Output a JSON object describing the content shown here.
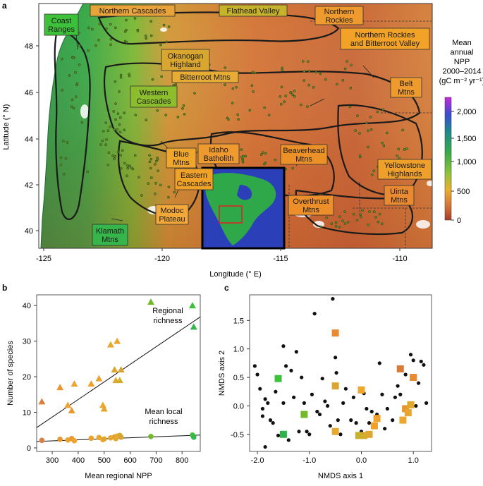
{
  "panel_labels": {
    "a": "a",
    "b": "b",
    "c": "c"
  },
  "panel_a": {
    "ylabel": "Latitude (° N)",
    "xlabel": "Longitude (° E)",
    "xticks": [
      "-125",
      "-120",
      "-115",
      "-110"
    ],
    "yticks": [
      "40",
      "42",
      "44",
      "46",
      "48"
    ],
    "colorbar": {
      "title_lines": [
        "Mean",
        "annual",
        "NPP",
        "2000–2014",
        "(gC m⁻² yr⁻¹)"
      ],
      "ticks": [
        "0",
        "500",
        "1,000",
        "1,500",
        "2,000"
      ]
    },
    "regions": [
      {
        "lines": [
          "Coast",
          "Ranges"
        ],
        "color": "#3ec13a"
      },
      {
        "lines": [
          "Northern Cascades"
        ],
        "color": "#e8a33a"
      },
      {
        "lines": [
          "Flathead Valley"
        ],
        "color": "#c7b32b"
      },
      {
        "lines": [
          "Northern",
          "Rockies"
        ],
        "color": "#ef9a2e"
      },
      {
        "lines": [
          "Northern Rockies",
          "and Bitterroot Valley"
        ],
        "color": "#f2a227"
      },
      {
        "lines": [
          "Okanogan",
          "Highland"
        ],
        "color": "#d9a62f"
      },
      {
        "lines": [
          "Bitterroot Mtns"
        ],
        "color": "#e6ac34"
      },
      {
        "lines": [
          "Belt",
          "Mtns"
        ],
        "color": "#ee9a2c"
      },
      {
        "lines": [
          "Western",
          "Cascades"
        ],
        "color": "#8cbd2c"
      },
      {
        "lines": [
          "Blue",
          "Mtns"
        ],
        "color": "#f0a52c"
      },
      {
        "lines": [
          "Idaho",
          "Batholith"
        ],
        "color": "#ef9a2e"
      },
      {
        "lines": [
          "Beaverhead",
          "Mtns"
        ],
        "color": "#ec9128"
      },
      {
        "lines": [
          "Yellowstone",
          "Highlands"
        ],
        "color": "#eea02b"
      },
      {
        "lines": [
          "Eastern",
          "Cascades"
        ],
        "color": "#f0a127"
      },
      {
        "lines": [
          "Overthrust",
          "Mtns"
        ],
        "color": "#ec8e2a"
      },
      {
        "lines": [
          "Uinta",
          "Mtns"
        ],
        "color": "#ea8a30"
      },
      {
        "lines": [
          "Modoc",
          "Plateau"
        ],
        "color": "#f3a93a"
      },
      {
        "lines": [
          "Klamath",
          "Mtns"
        ],
        "color": "#35b54a"
      }
    ]
  },
  "chart_data": [
    {
      "type": "scatter",
      "panel": "b",
      "xlabel": "Mean regional NPP",
      "ylabel": "Number of species",
      "xlim": [
        240,
        870
      ],
      "ylim": [
        -1,
        43
      ],
      "xticks": [
        300,
        400,
        500,
        600,
        700,
        800
      ],
      "yticks": [
        0,
        10,
        20,
        30,
        40
      ],
      "annotations": [
        {
          "lines": [
            "Regional",
            "richness"
          ]
        },
        {
          "lines": [
            "Mean local",
            "richness"
          ]
        }
      ],
      "series": [
        {
          "marker": "triangle",
          "points": [
            {
              "x": 260,
              "y": 13,
              "color": "#d98040"
            },
            {
              "x": 330,
              "y": 17,
              "color": "#e8962f"
            },
            {
              "x": 360,
              "y": 12,
              "color": "#eea32e"
            },
            {
              "x": 375,
              "y": 10.5,
              "color": "#e89a30"
            },
            {
              "x": 385,
              "y": 18,
              "color": "#eea32e"
            },
            {
              "x": 450,
              "y": 18,
              "color": "#f0a02a"
            },
            {
              "x": 480,
              "y": 19.5,
              "color": "#e8a52f"
            },
            {
              "x": 495,
              "y": 12,
              "color": "#f0a72d"
            },
            {
              "x": 500,
              "y": 11,
              "color": "#e0a630"
            },
            {
              "x": 525,
              "y": 29,
              "color": "#e8a830"
            },
            {
              "x": 540,
              "y": 22,
              "color": "#dca52d"
            },
            {
              "x": 545,
              "y": 19,
              "color": "#e0a830"
            },
            {
              "x": 550,
              "y": 30,
              "color": "#eea72c"
            },
            {
              "x": 560,
              "y": 19,
              "color": "#cfae2e"
            },
            {
              "x": 565,
              "y": 22,
              "color": "#d6a530"
            },
            {
              "x": 680,
              "y": 41,
              "color": "#74b82c"
            },
            {
              "x": 840,
              "y": 40,
              "color": "#3ec13a"
            },
            {
              "x": 845,
              "y": 34,
              "color": "#34b64a"
            }
          ],
          "fit": {
            "x": [
              240,
              870
            ],
            "y": [
              5.7,
              36.8
            ]
          }
        },
        {
          "marker": "circle",
          "points": [
            {
              "x": 260,
              "y": 2.1,
              "color": "#d98040"
            },
            {
              "x": 330,
              "y": 2.4,
              "color": "#e8962f"
            },
            {
              "x": 360,
              "y": 2.2,
              "color": "#eea32e"
            },
            {
              "x": 375,
              "y": 2.6,
              "color": "#e89a30"
            },
            {
              "x": 385,
              "y": 2.0,
              "color": "#eea32e"
            },
            {
              "x": 450,
              "y": 2.7,
              "color": "#f0a02a"
            },
            {
              "x": 480,
              "y": 2.9,
              "color": "#e8a52f"
            },
            {
              "x": 495,
              "y": 2.3,
              "color": "#f0a72d"
            },
            {
              "x": 500,
              "y": 2.5,
              "color": "#e0a630"
            },
            {
              "x": 525,
              "y": 2.8,
              "color": "#e8a830"
            },
            {
              "x": 540,
              "y": 3.1,
              "color": "#dca52d"
            },
            {
              "x": 545,
              "y": 2.6,
              "color": "#e0a830"
            },
            {
              "x": 550,
              "y": 3.3,
              "color": "#eea72c"
            },
            {
              "x": 560,
              "y": 3.5,
              "color": "#cfae2e"
            },
            {
              "x": 565,
              "y": 3.0,
              "color": "#d6a530"
            },
            {
              "x": 680,
              "y": 3.2,
              "color": "#74b82c"
            },
            {
              "x": 840,
              "y": 3.6,
              "color": "#3ec13a"
            },
            {
              "x": 845,
              "y": 3.0,
              "color": "#34b64a"
            }
          ],
          "fit": {
            "x": [
              240,
              870
            ],
            "y": [
              1.8,
              3.6
            ]
          }
        }
      ]
    },
    {
      "type": "scatter",
      "panel": "c",
      "xlabel": "NMDS axis 1",
      "ylabel": "NMDS axis 2",
      "xlim": [
        -2.15,
        1.35
      ],
      "ylim": [
        -0.8,
        1.95
      ],
      "xticks": [
        -2.0,
        -1.0,
        0.0,
        1.0
      ],
      "yticks": [
        -0.5,
        0.0,
        0.5,
        1.0,
        1.5
      ],
      "series": [
        {
          "marker": "circle",
          "color": "#111111",
          "points": [
            [
              -2.05,
              0.7
            ],
            [
              -2.0,
              0.55
            ],
            [
              -1.95,
              0.3
            ],
            [
              -1.9,
              -0.05
            ],
            [
              -1.85,
              0.12
            ],
            [
              -1.9,
              -0.18
            ],
            [
              -1.85,
              -0.72
            ],
            [
              -1.8,
              0.05
            ],
            [
              -1.75,
              -0.25
            ],
            [
              -1.7,
              -0.3
            ],
            [
              -1.65,
              0.25
            ],
            [
              -1.6,
              -0.52
            ],
            [
              -1.5,
              0.05
            ],
            [
              -1.5,
              1.05
            ],
            [
              -1.45,
              0.7
            ],
            [
              -1.4,
              -0.6
            ],
            [
              -1.35,
              0.62
            ],
            [
              -1.3,
              0.15
            ],
            [
              -1.25,
              0.95
            ],
            [
              -1.2,
              -0.45
            ],
            [
              -1.15,
              0.5
            ],
            [
              -1.1,
              0.05
            ],
            [
              -1.05,
              -0.45
            ],
            [
              -1.0,
              -0.5
            ],
            [
              -0.95,
              0.2
            ],
            [
              -0.9,
              1.62
            ],
            [
              -0.85,
              -0.1
            ],
            [
              -0.8,
              -0.15
            ],
            [
              -0.75,
              0.48
            ],
            [
              -0.7,
              0.08
            ],
            [
              -0.65,
              0.0
            ],
            [
              -0.6,
              -0.35
            ],
            [
              -0.55,
              1.88
            ],
            [
              -0.5,
              0.85
            ],
            [
              -0.48,
              0.58
            ],
            [
              -0.45,
              -0.25
            ],
            [
              -0.4,
              -0.5
            ],
            [
              -0.35,
              0.05
            ],
            [
              -0.3,
              0.3
            ],
            [
              -0.2,
              -0.25
            ],
            [
              -0.15,
              0.15
            ],
            [
              -0.1,
              -0.3
            ],
            [
              0.0,
              -0.45
            ],
            [
              0.05,
              0.22
            ],
            [
              0.1,
              -0.05
            ],
            [
              0.15,
              -0.3
            ],
            [
              0.2,
              -0.1
            ],
            [
              0.3,
              -0.15
            ],
            [
              0.35,
              0.75
            ],
            [
              0.4,
              0.2
            ],
            [
              0.45,
              -0.4
            ],
            [
              0.5,
              -0.05
            ],
            [
              0.6,
              -0.25
            ],
            [
              0.65,
              0.15
            ],
            [
              0.7,
              0.35
            ],
            [
              0.75,
              0.2
            ],
            [
              0.85,
              0.55
            ],
            [
              0.9,
              -0.1
            ],
            [
              0.95,
              0.9
            ],
            [
              1.0,
              0.8
            ],
            [
              1.05,
              0.0
            ],
            [
              1.1,
              0.4
            ],
            [
              1.15,
              0.78
            ],
            [
              1.2,
              0.72
            ],
            [
              1.25,
              0.05
            ]
          ]
        },
        {
          "marker": "square",
          "points": [
            {
              "x": -1.6,
              "y": 0.48,
              "color": "#3ec13a"
            },
            {
              "x": -1.5,
              "y": -0.5,
              "color": "#2db34a"
            },
            {
              "x": -1.1,
              "y": -0.15,
              "color": "#74b82c"
            },
            {
              "x": -0.5,
              "y": 1.28,
              "color": "#ea8a30"
            },
            {
              "x": -0.5,
              "y": 0.35,
              "color": "#dca52d"
            },
            {
              "x": -0.5,
              "y": -0.45,
              "color": "#e8a830"
            },
            {
              "x": -0.05,
              "y": -0.52,
              "color": "#c7b32b"
            },
            {
              "x": 0.0,
              "y": 0.28,
              "color": "#f0a72d"
            },
            {
              "x": 0.05,
              "y": -0.52,
              "color": "#cfae2e"
            },
            {
              "x": 0.15,
              "y": -0.5,
              "color": "#e0a630"
            },
            {
              "x": 0.25,
              "y": -0.35,
              "color": "#f0a02a"
            },
            {
              "x": 0.3,
              "y": -0.22,
              "color": "#eea32e"
            },
            {
              "x": 0.75,
              "y": 0.65,
              "color": "#d97a38"
            },
            {
              "x": 0.8,
              "y": -0.25,
              "color": "#eea72c"
            },
            {
              "x": 0.85,
              "y": -0.05,
              "color": "#e8962f"
            },
            {
              "x": 0.9,
              "y": -0.12,
              "color": "#e8a52f"
            },
            {
              "x": 0.95,
              "y": 0.02,
              "color": "#e0a830"
            },
            {
              "x": 1.0,
              "y": 0.5,
              "color": "#e88a2e"
            }
          ]
        }
      ]
    }
  ]
}
